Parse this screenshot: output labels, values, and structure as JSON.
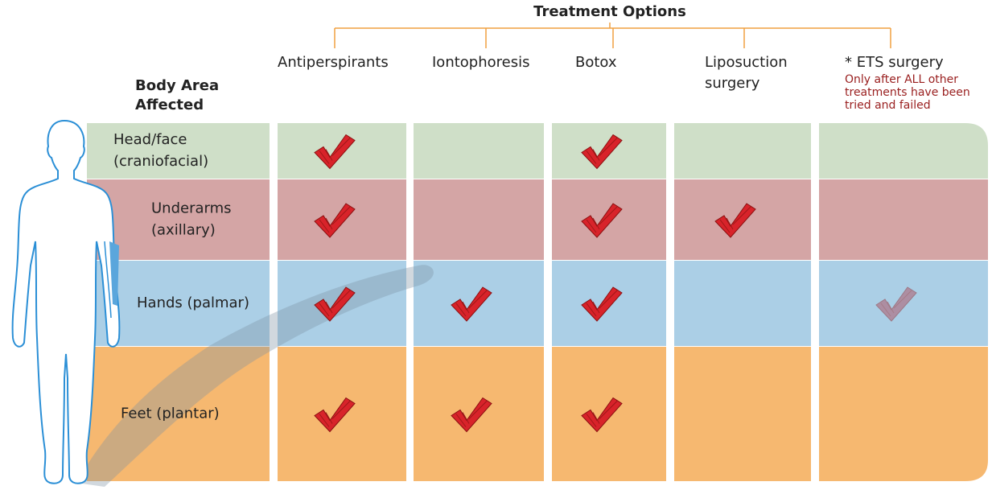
{
  "title": "Treatment Options",
  "row_header": [
    "Body Area",
    "Affected"
  ],
  "columns": [
    {
      "label": [
        "Antiperspirants"
      ]
    },
    {
      "label": [
        "Iontophoresis"
      ]
    },
    {
      "label": [
        "Botox"
      ]
    },
    {
      "label": [
        "Liposuction",
        "surgery"
      ]
    },
    {
      "label": [
        "* ETS surgery"
      ],
      "note": [
        "Only after ALL other",
        "treatments have been",
        "tried and failed"
      ]
    }
  ],
  "rows": [
    {
      "label": [
        "Head/face",
        "(craniofacial)"
      ],
      "color": "#cfdfc8",
      "checks": [
        true,
        false,
        true,
        false,
        false
      ]
    },
    {
      "label": [
        "Underarms",
        "(axillary)"
      ],
      "color": "#d4a5a5",
      "checks": [
        true,
        false,
        true,
        true,
        false
      ]
    },
    {
      "label": [
        "Hands (palmar)"
      ],
      "color": "#abcfe6",
      "checks": [
        true,
        true,
        true,
        false,
        true
      ]
    },
    {
      "label": [
        "Feet (plantar)"
      ],
      "color": "#f6b870",
      "checks": [
        true,
        true,
        true,
        false,
        false
      ]
    }
  ]
}
